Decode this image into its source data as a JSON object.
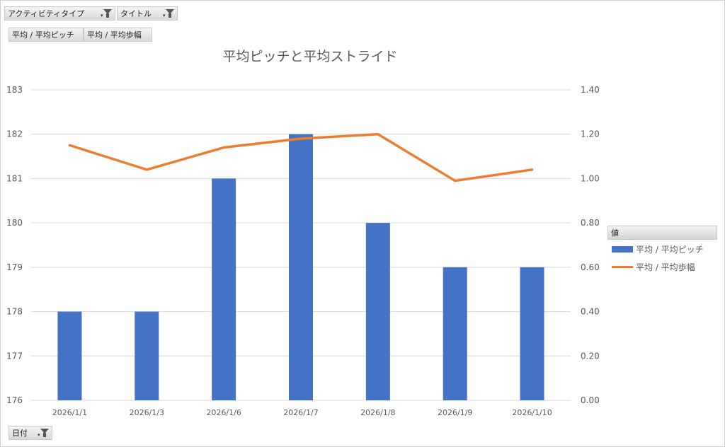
{
  "filters": {
    "activity_type": "アクティビティタイプ",
    "title": "タイトル",
    "date": "日付"
  },
  "value_fields": [
    "平均 / 平均ピッチ",
    "平均 / 平均歩幅"
  ],
  "legend": {
    "title": "値"
  },
  "colors": {
    "bar": "#4472C4",
    "line": "#ED7D31",
    "grid": "#d9d9d9",
    "axis_text": "#595959",
    "title": "#595959"
  },
  "chart_data": {
    "type": "bar",
    "title": "平均ピッチと平均ストライド",
    "categories": [
      "2026/1/1",
      "2026/1/3",
      "2026/1/6",
      "2026/1/7",
      "2026/1/8",
      "2026/1/9",
      "2026/1/10"
    ],
    "series": [
      {
        "name": "平均 / 平均ピッチ",
        "type": "bar",
        "axis": "left",
        "values": [
          178,
          178,
          181,
          182,
          180,
          179,
          179
        ]
      },
      {
        "name": "平均 / 平均歩幅",
        "type": "line",
        "axis": "right",
        "values": [
          1.15,
          1.04,
          1.14,
          1.18,
          1.2,
          0.99,
          1.04
        ]
      }
    ],
    "y_left": {
      "min": 176,
      "max": 183,
      "ticks": [
        "176",
        "177",
        "178",
        "179",
        "180",
        "181",
        "182",
        "183"
      ]
    },
    "y_right": {
      "min": 0,
      "max": 1.4,
      "ticks": [
        "0.00",
        "0.20",
        "0.40",
        "0.60",
        "0.80",
        "1.00",
        "1.20",
        "1.40"
      ]
    },
    "grid": true,
    "legend_position": "right"
  }
}
